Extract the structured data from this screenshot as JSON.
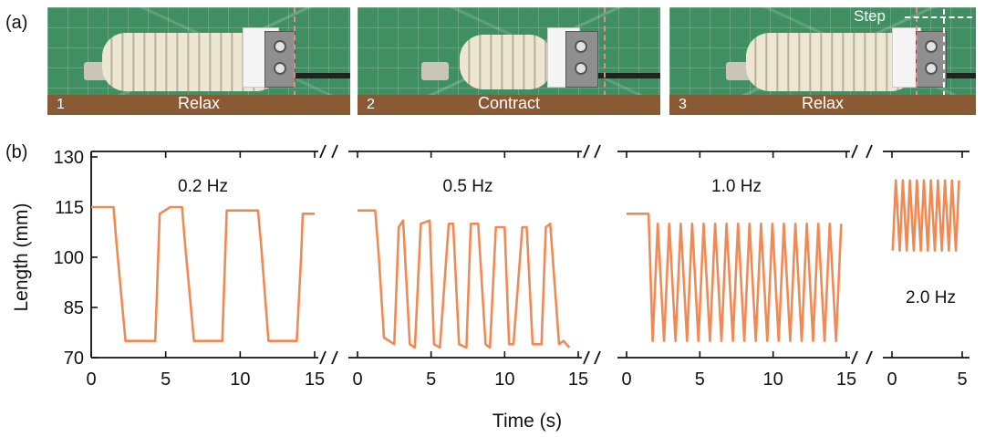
{
  "panel_a": {
    "label": "(a)",
    "frames": [
      {
        "number": "1",
        "caption": "Relax"
      },
      {
        "number": "2",
        "caption": "Contract"
      },
      {
        "number": "3",
        "caption": "Relax",
        "step_label": "Step"
      }
    ]
  },
  "panel_b": {
    "label": "(b)"
  },
  "colors": {
    "series": "#f08a55",
    "axis": "#111111"
  },
  "chart_data": {
    "type": "line",
    "ylabel": "Length (mm)",
    "xlabel": "Time (s)",
    "ylim": [
      70,
      130
    ],
    "yticks": [
      "70",
      "85",
      "100",
      "115",
      "130"
    ],
    "axis_break": true,
    "panels": [
      {
        "label": "0.2 Hz",
        "xlim": [
          0,
          15
        ],
        "xticks": [
          "0",
          "5",
          "10",
          "15"
        ],
        "x": [
          0,
          1.5,
          1.7,
          2.3,
          4.3,
          4.6,
          5.3,
          6.1,
          6.3,
          6.9,
          8.8,
          9.1,
          11.2,
          11.4,
          11.9,
          13.8,
          14.1,
          14.2,
          15
        ],
        "y": [
          115,
          115,
          104,
          75,
          75,
          113,
          115,
          115,
          104,
          75,
          75,
          114,
          114,
          104,
          75,
          75,
          101,
          113,
          113
        ]
      },
      {
        "label": "0.5 Hz",
        "xlim": [
          0,
          15
        ],
        "xticks": [
          "0",
          "5",
          "10",
          "15"
        ],
        "x": [
          0,
          1.2,
          1.45,
          1.8,
          2.5,
          2.8,
          3.1,
          3.55,
          3.9,
          4.3,
          4.9,
          5.2,
          5.6,
          6.2,
          6.5,
          6.9,
          7.4,
          7.7,
          8.2,
          8.7,
          9.0,
          9.4,
          10.0,
          10.3,
          10.6,
          11.2,
          11.5,
          11.9,
          12.5,
          12.8,
          13.1,
          13.7,
          14.0,
          14.4
        ],
        "y": [
          114,
          114,
          100,
          76,
          74,
          109,
          111,
          74,
          73,
          110,
          111,
          74,
          73,
          110,
          110,
          74,
          73,
          110,
          110,
          74,
          73,
          109,
          109,
          74,
          74,
          109,
          109,
          74,
          74,
          109,
          110,
          74,
          75,
          73
        ],
        "markers_simplified": true
      },
      {
        "label": "1.0 Hz",
        "xlim": [
          0,
          15
        ],
        "xticks": [
          "0",
          "5",
          "10",
          "15"
        ],
        "cycles": 17,
        "y_high": 110,
        "y_low": 75,
        "hold_value": 113,
        "hold_until": 1.5
      },
      {
        "label": "2.0 Hz",
        "xlim": [
          0,
          5
        ],
        "xticks": [
          "0",
          "5"
        ],
        "cycles": 10,
        "y_high": 123,
        "y_low": 102
      }
    ]
  }
}
